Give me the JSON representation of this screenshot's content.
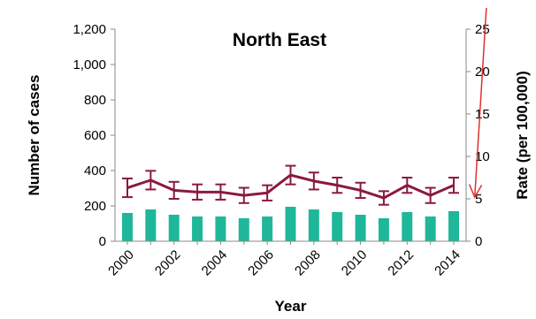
{
  "chart_data": {
    "type": "bar+line",
    "title": "North East",
    "xlabel": "Year",
    "ylabel_left": "Number of cases",
    "ylabel_right": "Rate (per 100,000)",
    "years": [
      2000,
      2001,
      2002,
      2003,
      2004,
      2005,
      2006,
      2007,
      2008,
      2009,
      2010,
      2011,
      2012,
      2013,
      2014
    ],
    "x_tick_labels": [
      "2000",
      "2002",
      "2004",
      "2006",
      "2008",
      "2010",
      "2012",
      "2014"
    ],
    "left_axis": {
      "ylim": [
        0,
        1200
      ],
      "ticks": [
        0,
        200,
        400,
        600,
        800,
        1000,
        1200
      ],
      "tick_labels": [
        "0",
        "200",
        "400",
        "600",
        "800",
        "1,000",
        "1,200"
      ]
    },
    "right_axis": {
      "ylim": [
        0,
        25
      ],
      "ticks": [
        0,
        5,
        10,
        15,
        20,
        25
      ],
      "tick_labels": [
        "0",
        "5",
        "10",
        "15",
        "20",
        "25"
      ]
    },
    "series": [
      {
        "name": "Number of cases",
        "type": "bar",
        "axis": "left",
        "color": "#1fb79a",
        "values": [
          160,
          180,
          150,
          140,
          140,
          130,
          140,
          195,
          180,
          165,
          150,
          130,
          165,
          140,
          170
        ]
      },
      {
        "name": "Rate (per 100,000)",
        "type": "line",
        "axis": "right",
        "color": "#8b1a3d",
        "values": [
          6.3,
          7.2,
          6.0,
          5.8,
          5.8,
          5.4,
          5.7,
          7.8,
          7.1,
          6.6,
          6.0,
          5.1,
          6.6,
          5.4,
          6.6
        ],
        "error_low": [
          5.2,
          6.1,
          5.0,
          4.9,
          4.9,
          4.5,
          4.8,
          6.7,
          6.1,
          5.7,
          5.1,
          4.3,
          5.7,
          4.5,
          5.7
        ],
        "error_high": [
          7.4,
          8.3,
          7.0,
          6.7,
          6.7,
          6.3,
          6.6,
          8.9,
          8.1,
          7.5,
          6.9,
          5.9,
          7.5,
          6.3,
          7.5
        ]
      }
    ],
    "annotation": {
      "type": "arrow",
      "color": "#e03030",
      "from": {
        "x": 2015.4,
        "y": 27.5
      },
      "to": {
        "x": 2014.9,
        "y": 5.2
      }
    },
    "legend": "none",
    "grid": false
  }
}
